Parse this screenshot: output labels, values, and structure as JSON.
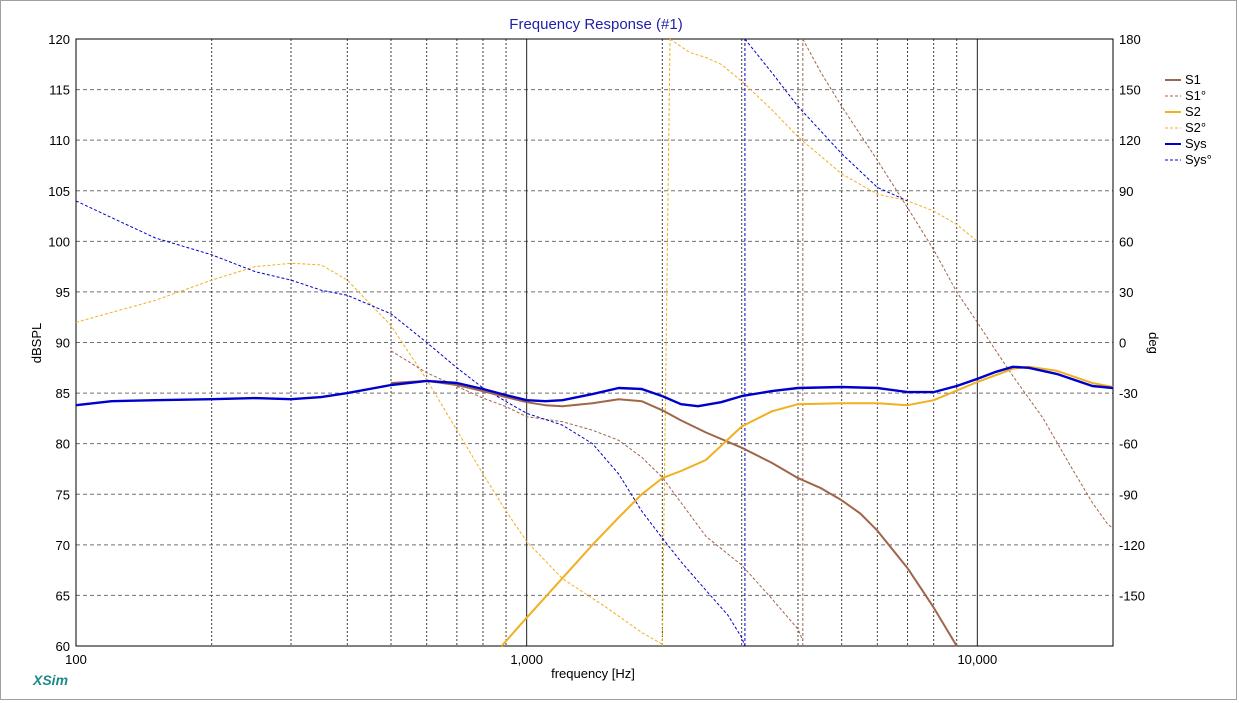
{
  "chart_data": {
    "type": "line",
    "title": "Frequency Response (#1)",
    "xlabel": "frequency [Hz]",
    "ylabel": "dBSPL",
    "y2label": "deg",
    "x_scale": "log",
    "xlim": [
      100,
      20000
    ],
    "ylim": [
      60,
      120
    ],
    "y2lim": [
      -180,
      180
    ],
    "x_tick_labels": [
      {
        "value": 100,
        "label": "100"
      },
      {
        "value": 1000,
        "label": "1,000"
      },
      {
        "value": 10000,
        "label": "10,000"
      }
    ],
    "y_ticks": [
      60,
      65,
      70,
      75,
      80,
      85,
      90,
      95,
      100,
      105,
      110,
      115,
      120
    ],
    "y2_ticks": [
      -150,
      -120,
      -90,
      -60,
      -30,
      0,
      30,
      60,
      90,
      120,
      150,
      180
    ],
    "grid": true,
    "legend_position": "right",
    "watermark": "XSim",
    "series": [
      {
        "name": "S1",
        "axis": "left",
        "style": "solid",
        "color": "#a0664a",
        "points": [
          [
            500,
            86.0
          ],
          [
            600,
            86.2
          ],
          [
            700,
            85.8
          ],
          [
            800,
            85.2
          ],
          [
            900,
            84.6
          ],
          [
            1000,
            84.1
          ],
          [
            1100,
            83.8
          ],
          [
            1200,
            83.7
          ],
          [
            1400,
            84.0
          ],
          [
            1600,
            84.4
          ],
          [
            1800,
            84.2
          ],
          [
            2000,
            83.3
          ],
          [
            2200,
            82.3
          ],
          [
            2500,
            81.1
          ],
          [
            3000,
            79.6
          ],
          [
            3500,
            78.1
          ],
          [
            4000,
            76.6
          ],
          [
            4500,
            75.6
          ],
          [
            5000,
            74.4
          ],
          [
            5500,
            73.1
          ],
          [
            6000,
            71.4
          ],
          [
            7000,
            67.7
          ],
          [
            8000,
            63.8
          ],
          [
            9000,
            60.0
          ]
        ]
      },
      {
        "name": "S1°",
        "axis": "right",
        "style": "dashed",
        "color": "#a0664a",
        "segments": [
          [
            [
              500,
              -5
            ],
            [
              600,
              -18
            ],
            [
              700,
              -26
            ],
            [
              800,
              -33
            ],
            [
              900,
              -38
            ],
            [
              1000,
              -44
            ],
            [
              1200,
              -47
            ],
            [
              1400,
              -52
            ],
            [
              1600,
              -58
            ],
            [
              1800,
              -68
            ],
            [
              2000,
              -80
            ],
            [
              2500,
              -115
            ],
            [
              3000,
              -132
            ],
            [
              3500,
              -152
            ],
            [
              4000,
              -170
            ],
            [
              4100,
              -177
            ]
          ],
          [
            [
              4100,
              180
            ],
            [
              4500,
              160
            ],
            [
              5000,
              140
            ],
            [
              6000,
              108
            ],
            [
              7000,
              80
            ],
            [
              8000,
              55
            ],
            [
              9000,
              30
            ],
            [
              10000,
              12
            ],
            [
              11000,
              -5
            ],
            [
              12000,
              -20
            ],
            [
              14000,
              -45
            ],
            [
              16000,
              -72
            ],
            [
              18000,
              -95
            ],
            [
              19500,
              -108
            ],
            [
              20000,
              -110
            ]
          ]
        ]
      },
      {
        "name": "S2",
        "axis": "left",
        "style": "solid",
        "color": "#f0b020",
        "points": [
          [
            880,
            60
          ],
          [
            1000,
            62.8
          ],
          [
            1200,
            66.7
          ],
          [
            1400,
            70.0
          ],
          [
            1600,
            72.7
          ],
          [
            1800,
            75.0
          ],
          [
            2000,
            76.6
          ],
          [
            2200,
            77.3
          ],
          [
            2500,
            78.4
          ],
          [
            3000,
            81.7
          ],
          [
            3500,
            83.2
          ],
          [
            4000,
            83.9
          ],
          [
            5000,
            84.0
          ],
          [
            6000,
            84.0
          ],
          [
            7000,
            83.8
          ],
          [
            8000,
            84.3
          ],
          [
            10000,
            86.1
          ],
          [
            12000,
            87.4
          ],
          [
            13000,
            87.6
          ],
          [
            15000,
            87.2
          ],
          [
            18000,
            86.0
          ],
          [
            20000,
            85.6
          ]
        ]
      },
      {
        "name": "S2°",
        "axis": "right",
        "style": "dashed",
        "color": "#f0b020",
        "segments": [
          [
            [
              100,
              12
            ],
            [
              150,
              25
            ],
            [
              200,
              37
            ],
            [
              250,
              45
            ],
            [
              300,
              47
            ],
            [
              350,
              46
            ],
            [
              400,
              37
            ],
            [
              500,
              10
            ],
            [
              600,
              -22
            ],
            [
              700,
              -52
            ],
            [
              800,
              -78
            ],
            [
              900,
              -100
            ],
            [
              1000,
              -118
            ],
            [
              1200,
              -140
            ],
            [
              1500,
              -157
            ],
            [
              1800,
              -172
            ],
            [
              2000,
              -179
            ]
          ],
          [
            [
              2080,
              180
            ],
            [
              2300,
              172
            ],
            [
              2500,
              169
            ],
            [
              2700,
              165
            ],
            [
              3000,
              155
            ],
            [
              3500,
              138
            ],
            [
              4000,
              122
            ],
            [
              5000,
              100
            ],
            [
              6000,
              88
            ],
            [
              7000,
              84
            ],
            [
              8000,
              78
            ],
            [
              9000,
              70
            ],
            [
              10000,
              60
            ]
          ]
        ]
      },
      {
        "name": "Sys",
        "axis": "left",
        "style": "solid",
        "color": "#0000cc",
        "points": [
          [
            100,
            83.8
          ],
          [
            120,
            84.2
          ],
          [
            150,
            84.3
          ],
          [
            200,
            84.4
          ],
          [
            250,
            84.5
          ],
          [
            300,
            84.4
          ],
          [
            350,
            84.6
          ],
          [
            400,
            85.0
          ],
          [
            500,
            85.8
          ],
          [
            600,
            86.2
          ],
          [
            700,
            86.0
          ],
          [
            800,
            85.4
          ],
          [
            900,
            84.8
          ],
          [
            1000,
            84.3
          ],
          [
            1100,
            84.2
          ],
          [
            1200,
            84.3
          ],
          [
            1400,
            84.9
          ],
          [
            1600,
            85.5
          ],
          [
            1800,
            85.4
          ],
          [
            2000,
            84.7
          ],
          [
            2200,
            83.9
          ],
          [
            2400,
            83.7
          ],
          [
            2700,
            84.1
          ],
          [
            3000,
            84.7
          ],
          [
            3500,
            85.2
          ],
          [
            4000,
            85.5
          ],
          [
            5000,
            85.6
          ],
          [
            6000,
            85.5
          ],
          [
            7000,
            85.1
          ],
          [
            8000,
            85.1
          ],
          [
            9000,
            85.7
          ],
          [
            10000,
            86.4
          ],
          [
            11000,
            87.1
          ],
          [
            12000,
            87.6
          ],
          [
            13000,
            87.5
          ],
          [
            15000,
            86.9
          ],
          [
            18000,
            85.7
          ],
          [
            20000,
            85.5
          ]
        ]
      },
      {
        "name": "Sys°",
        "axis": "right",
        "style": "dashed",
        "color": "#0000cc",
        "segments": [
          [
            [
              100,
              84
            ],
            [
              120,
              74
            ],
            [
              150,
              62
            ],
            [
              200,
              52
            ],
            [
              250,
              42
            ],
            [
              300,
              37
            ],
            [
              350,
              31
            ],
            [
              400,
              28
            ],
            [
              500,
              17
            ],
            [
              600,
              0
            ],
            [
              700,
              -15
            ],
            [
              800,
              -27
            ],
            [
              900,
              -35
            ],
            [
              1000,
              -42
            ],
            [
              1200,
              -49
            ],
            [
              1400,
              -60
            ],
            [
              1600,
              -78
            ],
            [
              1800,
              -100
            ],
            [
              2000,
              -116
            ],
            [
              2200,
              -130
            ],
            [
              2500,
              -147
            ],
            [
              2800,
              -162
            ],
            [
              3000,
              -175
            ],
            [
              3050,
              -180
            ]
          ],
          [
            [
              3050,
              180
            ],
            [
              3500,
              160
            ],
            [
              4000,
              140
            ],
            [
              5000,
              112
            ],
            [
              6000,
              92
            ],
            [
              7000,
              84
            ]
          ]
        ]
      }
    ]
  }
}
